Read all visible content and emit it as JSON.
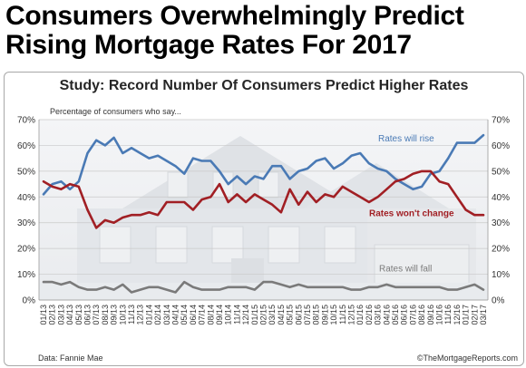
{
  "headline": {
    "line1": "Consumers Overwhelmingly Predict",
    "line2": "Rising Mortgage Rates For 2017"
  },
  "chart_data": {
    "type": "line",
    "title": "Study: Record Number Of Consumers Predict Higher Rates",
    "ylabel": "Percentage of consumers who say...",
    "ylim": [
      0,
      70
    ],
    "yticks": [
      "0%",
      "10%",
      "20%",
      "30%",
      "40%",
      "50%",
      "60%",
      "70%"
    ],
    "source": "Data: Fannie Mae",
    "credit": "©TheMortgageReports.com",
    "x": [
      "01/13",
      "02/13",
      "03/13",
      "04/13",
      "05/13",
      "06/13",
      "07/13",
      "08/13",
      "09/13",
      "10/13",
      "11/13",
      "12/13",
      "01/14",
      "02/14",
      "03/14",
      "04/14",
      "05/14",
      "06/14",
      "07/14",
      "08/14",
      "09/14",
      "10/14",
      "11/14",
      "12/14",
      "01/15",
      "02/15",
      "03/15",
      "04/15",
      "05/15",
      "06/15",
      "07/15",
      "08/15",
      "09/15",
      "10/15",
      "11/15",
      "12/15",
      "01/16",
      "02/16",
      "03/16",
      "04/16",
      "05/16",
      "06/16",
      "07/16",
      "08/16",
      "09/16",
      "10/16",
      "11/16",
      "12/16",
      "01/17",
      "02/17",
      "03/17"
    ],
    "series": [
      {
        "name": "Rates will rise",
        "color": "#4a7ab5",
        "values": [
          41,
          45,
          46,
          43,
          46,
          57,
          62,
          60,
          63,
          57,
          59,
          57,
          55,
          56,
          54,
          52,
          49,
          55,
          54,
          54,
          50,
          45,
          48,
          45,
          48,
          47,
          52,
          52,
          47,
          50,
          51,
          54,
          55,
          51,
          53,
          56,
          57,
          53,
          51,
          50,
          47,
          45,
          43,
          44,
          49,
          50,
          55,
          61,
          61,
          61,
          64
        ]
      },
      {
        "name": "Rates won't change",
        "color": "#a11f24",
        "values": [
          46,
          44,
          43,
          45,
          44,
          35,
          28,
          31,
          30,
          32,
          33,
          33,
          34,
          33,
          38,
          38,
          38,
          35,
          39,
          40,
          45,
          38,
          41,
          38,
          41,
          39,
          37,
          34,
          43,
          37,
          42,
          38,
          41,
          40,
          44,
          42,
          40,
          38,
          40,
          43,
          46,
          47,
          49,
          50,
          50,
          46,
          45,
          40,
          35,
          33,
          33
        ]
      },
      {
        "name": "Rates will fall",
        "color": "#7a7a7a",
        "values": [
          7,
          7,
          6,
          7,
          5,
          4,
          4,
          5,
          4,
          6,
          3,
          4,
          5,
          5,
          4,
          3,
          7,
          5,
          4,
          4,
          4,
          5,
          5,
          5,
          4,
          7,
          7,
          6,
          5,
          6,
          5,
          5,
          5,
          5,
          5,
          4,
          4,
          5,
          5,
          6,
          5,
          5,
          5,
          5,
          5,
          5,
          4,
          4,
          5,
          6,
          4
        ]
      }
    ]
  }
}
